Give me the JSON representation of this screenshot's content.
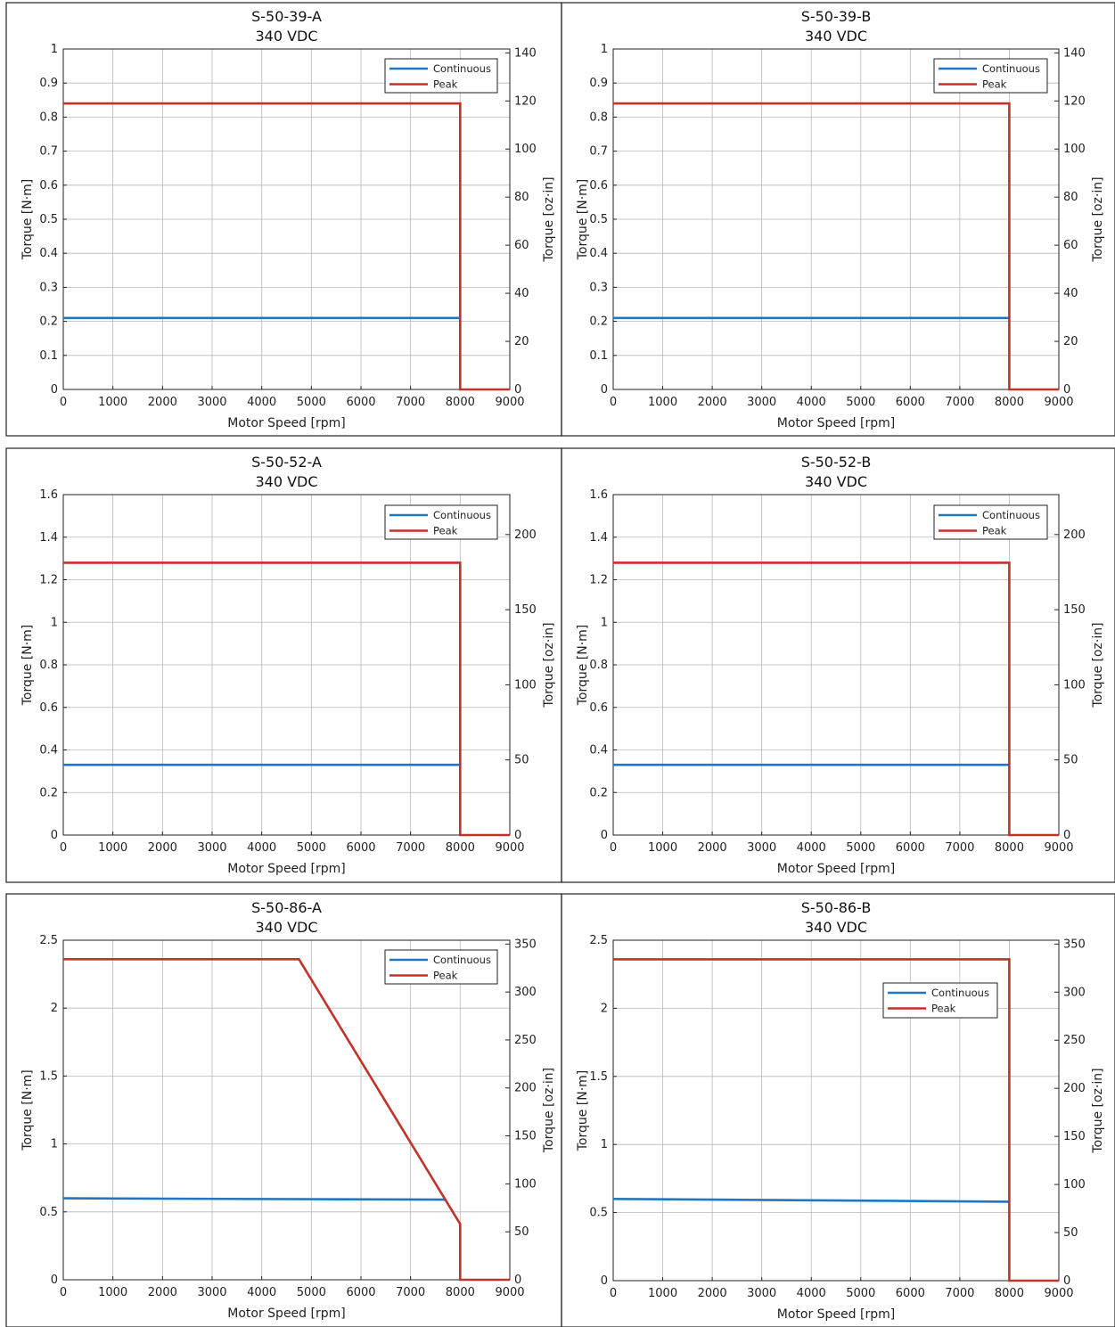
{
  "colors": {
    "continuous": "#1f77c4",
    "peak": "#c0332b",
    "grid": "#b8b8b8",
    "frame": "#222222"
  },
  "chart_data": [
    {
      "type": "line",
      "title": "S-50-39-A",
      "subtitle": "340 VDC",
      "xlabel": "Motor Speed [rpm]",
      "ylabel": "Torque [N·m]",
      "y2label": "Torque [oz·in]",
      "xlim": [
        0,
        9000
      ],
      "ylim": [
        0,
        1
      ],
      "y2lim": [
        0,
        141.6
      ],
      "xticks": [
        "0",
        "1000",
        "2000",
        "3000",
        "4000",
        "5000",
        "6000",
        "7000",
        "8000",
        "9000"
      ],
      "yticks": [
        0,
        0.1,
        0.2,
        0.3,
        0.4,
        0.5,
        0.6,
        0.7,
        0.8,
        0.9,
        1
      ],
      "yticklabels": [
        "0",
        "0.1",
        "0.2",
        "0.3",
        "0.4",
        "0.5",
        "0.6",
        "0.7",
        "0.8",
        "0.9",
        "1"
      ],
      "y2ticks": [
        0,
        20,
        40,
        60,
        80,
        100,
        120,
        140
      ],
      "y2ticklabels": [
        "0",
        "20",
        "40",
        "60",
        "80",
        "100",
        "120",
        "140"
      ],
      "grid": true,
      "legend": "top-right",
      "series": [
        {
          "name": "Continuous",
          "x": [
            0,
            8000
          ],
          "y": [
            0.21,
            0.21
          ]
        },
        {
          "name": "Peak",
          "x": [
            0,
            8000,
            8000,
            9000
          ],
          "y": [
            0.84,
            0.84,
            0,
            0
          ]
        }
      ]
    },
    {
      "type": "line",
      "title": "S-50-39-B",
      "subtitle": "340 VDC",
      "xlabel": "Motor Speed [rpm]",
      "ylabel": "Torque [N·m]",
      "y2label": "Torque [oz·in]",
      "xlim": [
        0,
        9000
      ],
      "ylim": [
        0,
        1
      ],
      "y2lim": [
        0,
        141.6
      ],
      "xticks": [
        "0",
        "1000",
        "2000",
        "3000",
        "4000",
        "5000",
        "6000",
        "7000",
        "8000",
        "9000"
      ],
      "yticks": [
        0,
        0.1,
        0.2,
        0.3,
        0.4,
        0.5,
        0.6,
        0.7,
        0.8,
        0.9,
        1
      ],
      "yticklabels": [
        "0",
        "0.1",
        "0.2",
        "0.3",
        "0.4",
        "0.5",
        "0.6",
        "0.7",
        "0.8",
        "0.9",
        "1"
      ],
      "y2ticks": [
        0,
        20,
        40,
        60,
        80,
        100,
        120,
        140
      ],
      "y2ticklabels": [
        "0",
        "20",
        "40",
        "60",
        "80",
        "100",
        "120",
        "140"
      ],
      "grid": true,
      "legend": "top-right",
      "series": [
        {
          "name": "Continuous",
          "x": [
            0,
            8000
          ],
          "y": [
            0.21,
            0.21
          ]
        },
        {
          "name": "Peak",
          "x": [
            0,
            8000,
            8000,
            9000
          ],
          "y": [
            0.84,
            0.84,
            0,
            0
          ]
        }
      ]
    },
    {
      "type": "line",
      "title": "S-50-52-A",
      "subtitle": "340 VDC",
      "xlabel": "Motor Speed [rpm]",
      "ylabel": "Torque [N·m]",
      "y2label": "Torque [oz·in]",
      "xlim": [
        0,
        9000
      ],
      "ylim": [
        0,
        1.6
      ],
      "y2lim": [
        0,
        226.6
      ],
      "xticks": [
        "0",
        "1000",
        "2000",
        "3000",
        "4000",
        "5000",
        "6000",
        "7000",
        "8000",
        "9000"
      ],
      "yticks": [
        0,
        0.2,
        0.4,
        0.6,
        0.8,
        1,
        1.2,
        1.4,
        1.6
      ],
      "yticklabels": [
        "0",
        "0.2",
        "0.4",
        "0.6",
        "0.8",
        "1",
        "1.2",
        "1.4",
        "1.6"
      ],
      "y2ticks": [
        0,
        50,
        100,
        150,
        200
      ],
      "y2ticklabels": [
        "0",
        "50",
        "100",
        "150",
        "200"
      ],
      "grid": true,
      "legend": "top-right",
      "series": [
        {
          "name": "Continuous",
          "x": [
            0,
            8000
          ],
          "y": [
            0.33,
            0.33
          ]
        },
        {
          "name": "Peak",
          "x": [
            0,
            8000,
            8000,
            9000
          ],
          "y": [
            1.28,
            1.28,
            0,
            0
          ]
        }
      ]
    },
    {
      "type": "line",
      "title": "S-50-52-B",
      "subtitle": "340 VDC",
      "xlabel": "Motor Speed [rpm]",
      "ylabel": "Torque [N·m]",
      "y2label": "Torque [oz·in]",
      "xlim": [
        0,
        9000
      ],
      "ylim": [
        0,
        1.6
      ],
      "y2lim": [
        0,
        226.6
      ],
      "xticks": [
        "0",
        "1000",
        "2000",
        "3000",
        "4000",
        "5000",
        "6000",
        "7000",
        "8000",
        "9000"
      ],
      "yticks": [
        0,
        0.2,
        0.4,
        0.6,
        0.8,
        1,
        1.2,
        1.4,
        1.6
      ],
      "yticklabels": [
        "0",
        "0.2",
        "0.4",
        "0.6",
        "0.8",
        "1",
        "1.2",
        "1.4",
        "1.6"
      ],
      "y2ticks": [
        0,
        50,
        100,
        150,
        200
      ],
      "y2ticklabels": [
        "0",
        "50",
        "100",
        "150",
        "200"
      ],
      "grid": true,
      "legend": "top-right",
      "series": [
        {
          "name": "Continuous",
          "x": [
            0,
            8000
          ],
          "y": [
            0.33,
            0.33
          ]
        },
        {
          "name": "Peak",
          "x": [
            0,
            8000,
            8000,
            9000
          ],
          "y": [
            1.28,
            1.28,
            0,
            0
          ]
        }
      ]
    },
    {
      "type": "line",
      "title": "S-50-86-A",
      "subtitle": "340 VDC",
      "xlabel": "Motor Speed [rpm]",
      "ylabel": "Torque [N·m]",
      "y2label": "Torque [oz·in]",
      "xlim": [
        0,
        9000
      ],
      "ylim": [
        0,
        2.5
      ],
      "y2lim": [
        0,
        354
      ],
      "xticks": [
        "0",
        "1000",
        "2000",
        "3000",
        "4000",
        "5000",
        "6000",
        "7000",
        "8000",
        "9000"
      ],
      "yticks": [
        0,
        0.5,
        1,
        1.5,
        2,
        2.5
      ],
      "yticklabels": [
        "0",
        "0.5",
        "1",
        "1.5",
        "2",
        "2.5"
      ],
      "y2ticks": [
        0,
        50,
        100,
        150,
        200,
        250,
        300,
        350
      ],
      "y2ticklabels": [
        "0",
        "50",
        "100",
        "150",
        "200",
        "250",
        "300",
        "350"
      ],
      "grid": true,
      "legend": "top-right",
      "series": [
        {
          "name": "Continuous",
          "x": [
            0,
            7700
          ],
          "y": [
            0.6,
            0.59
          ]
        },
        {
          "name": "Peak",
          "x": [
            0,
            4750,
            8000,
            8000,
            9000
          ],
          "y": [
            2.36,
            2.36,
            0.41,
            0,
            0
          ]
        }
      ]
    },
    {
      "type": "line",
      "title": "S-50-86-B",
      "subtitle": "340 VDC",
      "xlabel": "Motor Speed [rpm]",
      "ylabel": "Torque [N·m]",
      "y2label": "Torque [oz·in]",
      "xlim": [
        0,
        9000
      ],
      "ylim": [
        0,
        2.5
      ],
      "y2lim": [
        0,
        354
      ],
      "xticks": [
        "0",
        "1000",
        "2000",
        "3000",
        "4000",
        "5000",
        "6000",
        "7000",
        "8000",
        "9000"
      ],
      "yticks": [
        0,
        0.5,
        1,
        1.5,
        2,
        2.5
      ],
      "yticklabels": [
        "0",
        "0.5",
        "1",
        "1.5",
        "2",
        "2.5"
      ],
      "y2ticks": [
        0,
        50,
        100,
        150,
        200,
        250,
        300,
        350
      ],
      "y2ticklabels": [
        "0",
        "50",
        "100",
        "150",
        "200",
        "250",
        "300",
        "350"
      ],
      "grid": true,
      "legend": "upper-center-right",
      "series": [
        {
          "name": "Continuous",
          "x": [
            0,
            8000
          ],
          "y": [
            0.6,
            0.58
          ]
        },
        {
          "name": "Peak",
          "x": [
            0,
            8000,
            8000,
            9000
          ],
          "y": [
            2.36,
            2.36,
            0,
            0
          ]
        }
      ]
    }
  ]
}
